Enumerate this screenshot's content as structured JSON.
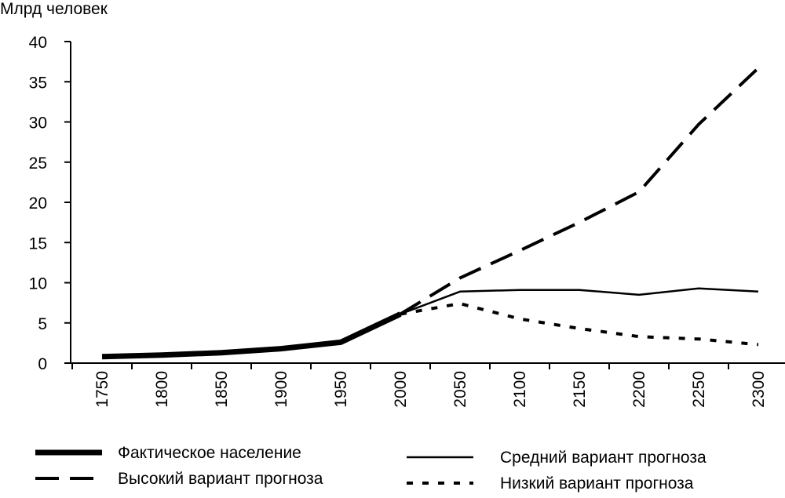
{
  "chart_data": {
    "type": "line",
    "title": "",
    "ylabel": "Млрд человек",
    "xlabel": "",
    "ylim": [
      0,
      40
    ],
    "yticks": [
      0,
      5,
      10,
      15,
      20,
      25,
      30,
      35,
      40
    ],
    "categories": [
      "1750",
      "1800",
      "1850",
      "1900",
      "1950",
      "2000",
      "2050",
      "2100",
      "2150",
      "2200",
      "2250",
      "2300"
    ],
    "grid": false,
    "legend_position": "bottom",
    "series": [
      {
        "name": "Фактическое население",
        "style": "thick",
        "color": "#000000",
        "points": [
          [
            1750,
            0.8
          ],
          [
            1800,
            1.0
          ],
          [
            1850,
            1.3
          ],
          [
            1900,
            1.8
          ],
          [
            1950,
            2.6
          ],
          [
            2000,
            6.1
          ]
        ]
      },
      {
        "name": "Средний вариант прогноза",
        "style": "thin",
        "color": "#000000",
        "points": [
          [
            2000,
            6.1
          ],
          [
            2050,
            8.9
          ],
          [
            2100,
            9.1
          ],
          [
            2150,
            9.1
          ],
          [
            2200,
            8.5
          ],
          [
            2250,
            9.3
          ],
          [
            2300,
            8.9
          ]
        ]
      },
      {
        "name": "Высокий вариант прогноза",
        "style": "dashed",
        "color": "#000000",
        "points": [
          [
            2000,
            6.1
          ],
          [
            2050,
            10.6
          ],
          [
            2100,
            14.0
          ],
          [
            2150,
            17.5
          ],
          [
            2200,
            21.3
          ],
          [
            2250,
            29.7
          ],
          [
            2300,
            36.7
          ]
        ]
      },
      {
        "name": "Низкий вариант прогноза",
        "style": "dotted",
        "color": "#000000",
        "points": [
          [
            2000,
            6.1
          ],
          [
            2050,
            7.4
          ],
          [
            2100,
            5.5
          ],
          [
            2150,
            4.3
          ],
          [
            2200,
            3.3
          ],
          [
            2250,
            3.0
          ],
          [
            2300,
            2.3
          ]
        ]
      }
    ]
  }
}
